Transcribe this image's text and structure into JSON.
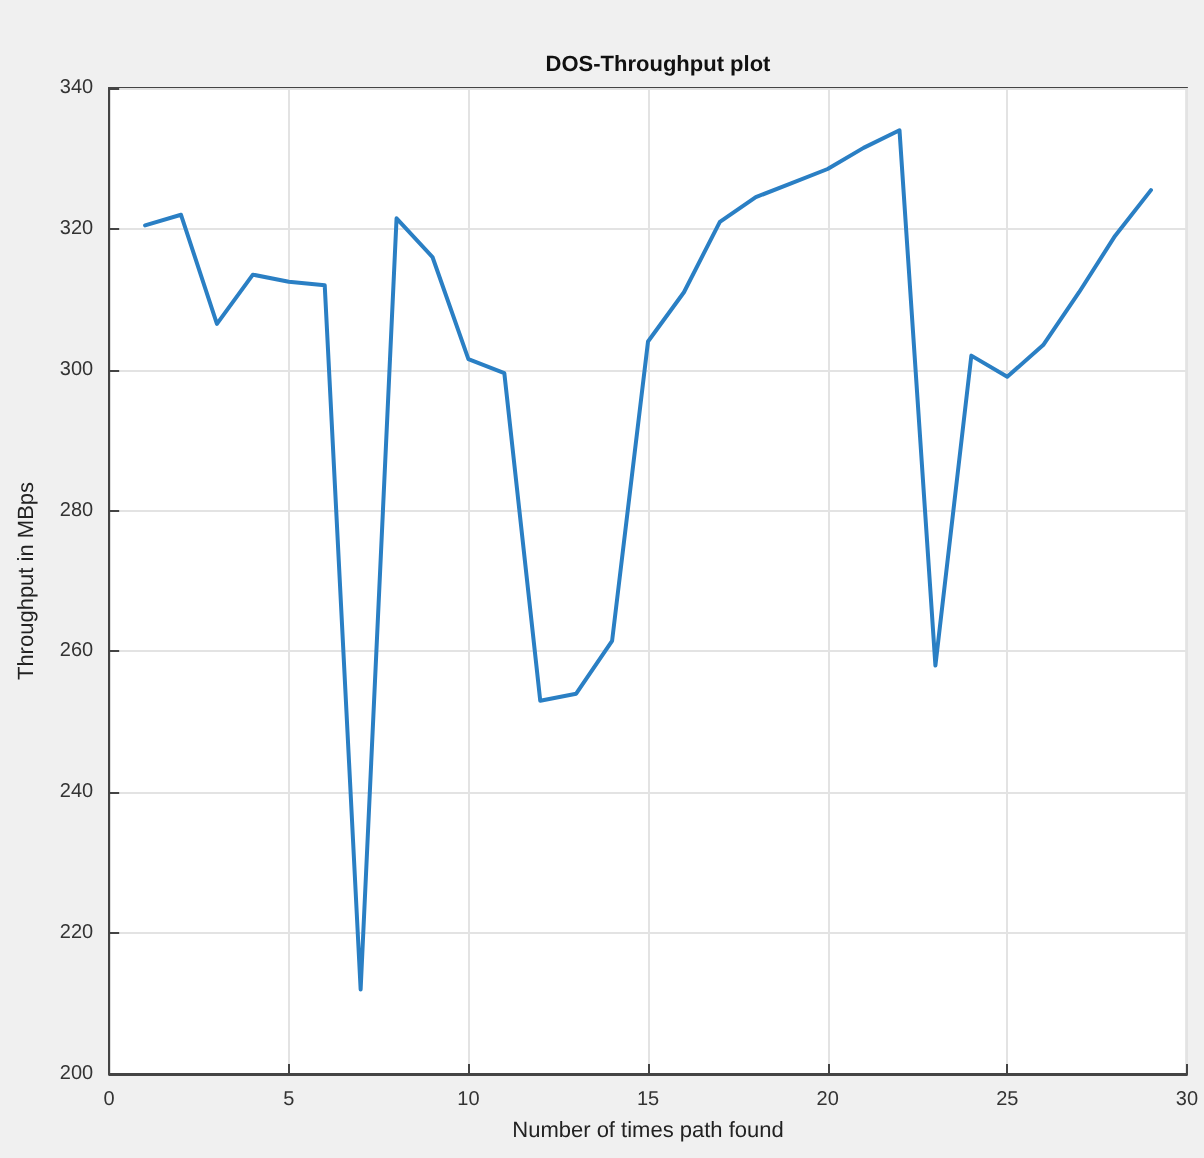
{
  "chart_data": {
    "type": "line",
    "title": "DOS-Throughput plot",
    "xlabel": "Number of times path found",
    "ylabel": "Throughput in MBps",
    "x": [
      1,
      2,
      3,
      4,
      5,
      6,
      7,
      8,
      9,
      10,
      11,
      12,
      13,
      14,
      15,
      16,
      17,
      18,
      19,
      20,
      21,
      22,
      23,
      24,
      25,
      26,
      27,
      28,
      29
    ],
    "series": [
      {
        "color": "#2a7fc4",
        "values": [
          320.5,
          322,
          306.5,
          313.5,
          312.5,
          312,
          212,
          321.5,
          316,
          301.5,
          299.5,
          253,
          254,
          261.5,
          304,
          311,
          321,
          324.5,
          326.5,
          328.5,
          331.5,
          334,
          258,
          302,
          299,
          303.5,
          311,
          319,
          325.5
        ]
      }
    ],
    "xlim": [
      0,
      30
    ],
    "xticks": [
      0,
      5,
      10,
      15,
      20,
      25,
      30
    ],
    "ylim": [
      200,
      340
    ],
    "yticks": [
      200,
      220,
      240,
      260,
      280,
      300,
      320,
      340
    ],
    "grid": true,
    "marker": "none",
    "line_style": "solid"
  }
}
